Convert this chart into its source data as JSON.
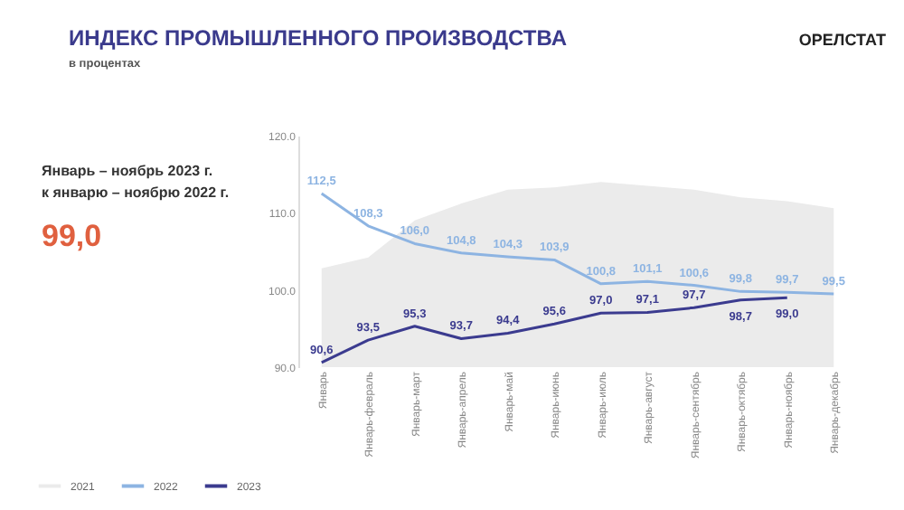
{
  "chart_data": {
    "type": "line",
    "title": "ИНДЕКС ПРОМЫШЛЕННОГО ПРОИЗВОДСТВА",
    "subtitle": "в процентах",
    "annotations": [
      "Январь – ноябрь 2023 г.",
      "к январю – ноябрю 2022 г.",
      "99,0",
      "ОРЕЛСТАТ"
    ],
    "categories": [
      "Январь",
      "Январь-февраль",
      "Январь-март",
      "Январь-апрель",
      "Январь-май",
      "Январь-июнь",
      "Январь-июль",
      "Январь-август",
      "Январь-сентябрь",
      "Январь-октябрь",
      "Январь-ноябрь",
      "Январь-декабрь"
    ],
    "series": [
      {
        "name": "2021",
        "type": "area",
        "color": "#ebebeb",
        "values": [
          102.8,
          104.2,
          109.0,
          111.2,
          113.0,
          113.3,
          114.0,
          113.5,
          113.0,
          112.0,
          111.5,
          110.6
        ]
      },
      {
        "name": "2022",
        "color": "#8db4e2",
        "values": [
          112.5,
          108.3,
          106.0,
          104.8,
          104.3,
          103.9,
          100.8,
          101.1,
          100.6,
          99.8,
          99.7,
          99.5
        ],
        "value_labels": [
          "112,5",
          "108,3",
          "106,0",
          "104,8",
          "104,3",
          "103,9",
          "100,8",
          "101,1",
          "100,6",
          "99,8",
          "99,7",
          "99,5"
        ]
      },
      {
        "name": "2023",
        "color": "#3b3b8f",
        "values": [
          90.6,
          93.5,
          95.3,
          93.7,
          94.4,
          95.6,
          97.0,
          97.1,
          97.7,
          98.7,
          99.0,
          null
        ],
        "value_labels": [
          "90,6",
          "93,5",
          "95,3",
          "93,7",
          "94,4",
          "95,6",
          "97,0",
          "97,1",
          "97,7",
          "98,7",
          "99,0",
          null
        ]
      }
    ],
    "ylim": [
      90,
      120
    ],
    "yticks": [
      {
        "value": 90,
        "label": "90.0"
      },
      {
        "value": 100,
        "label": "100.0"
      },
      {
        "value": 110,
        "label": "110.0"
      },
      {
        "value": 120,
        "label": "120.0"
      }
    ],
    "grid": false,
    "legend": "bottom left",
    "marker": "none",
    "line_style": "solid"
  }
}
